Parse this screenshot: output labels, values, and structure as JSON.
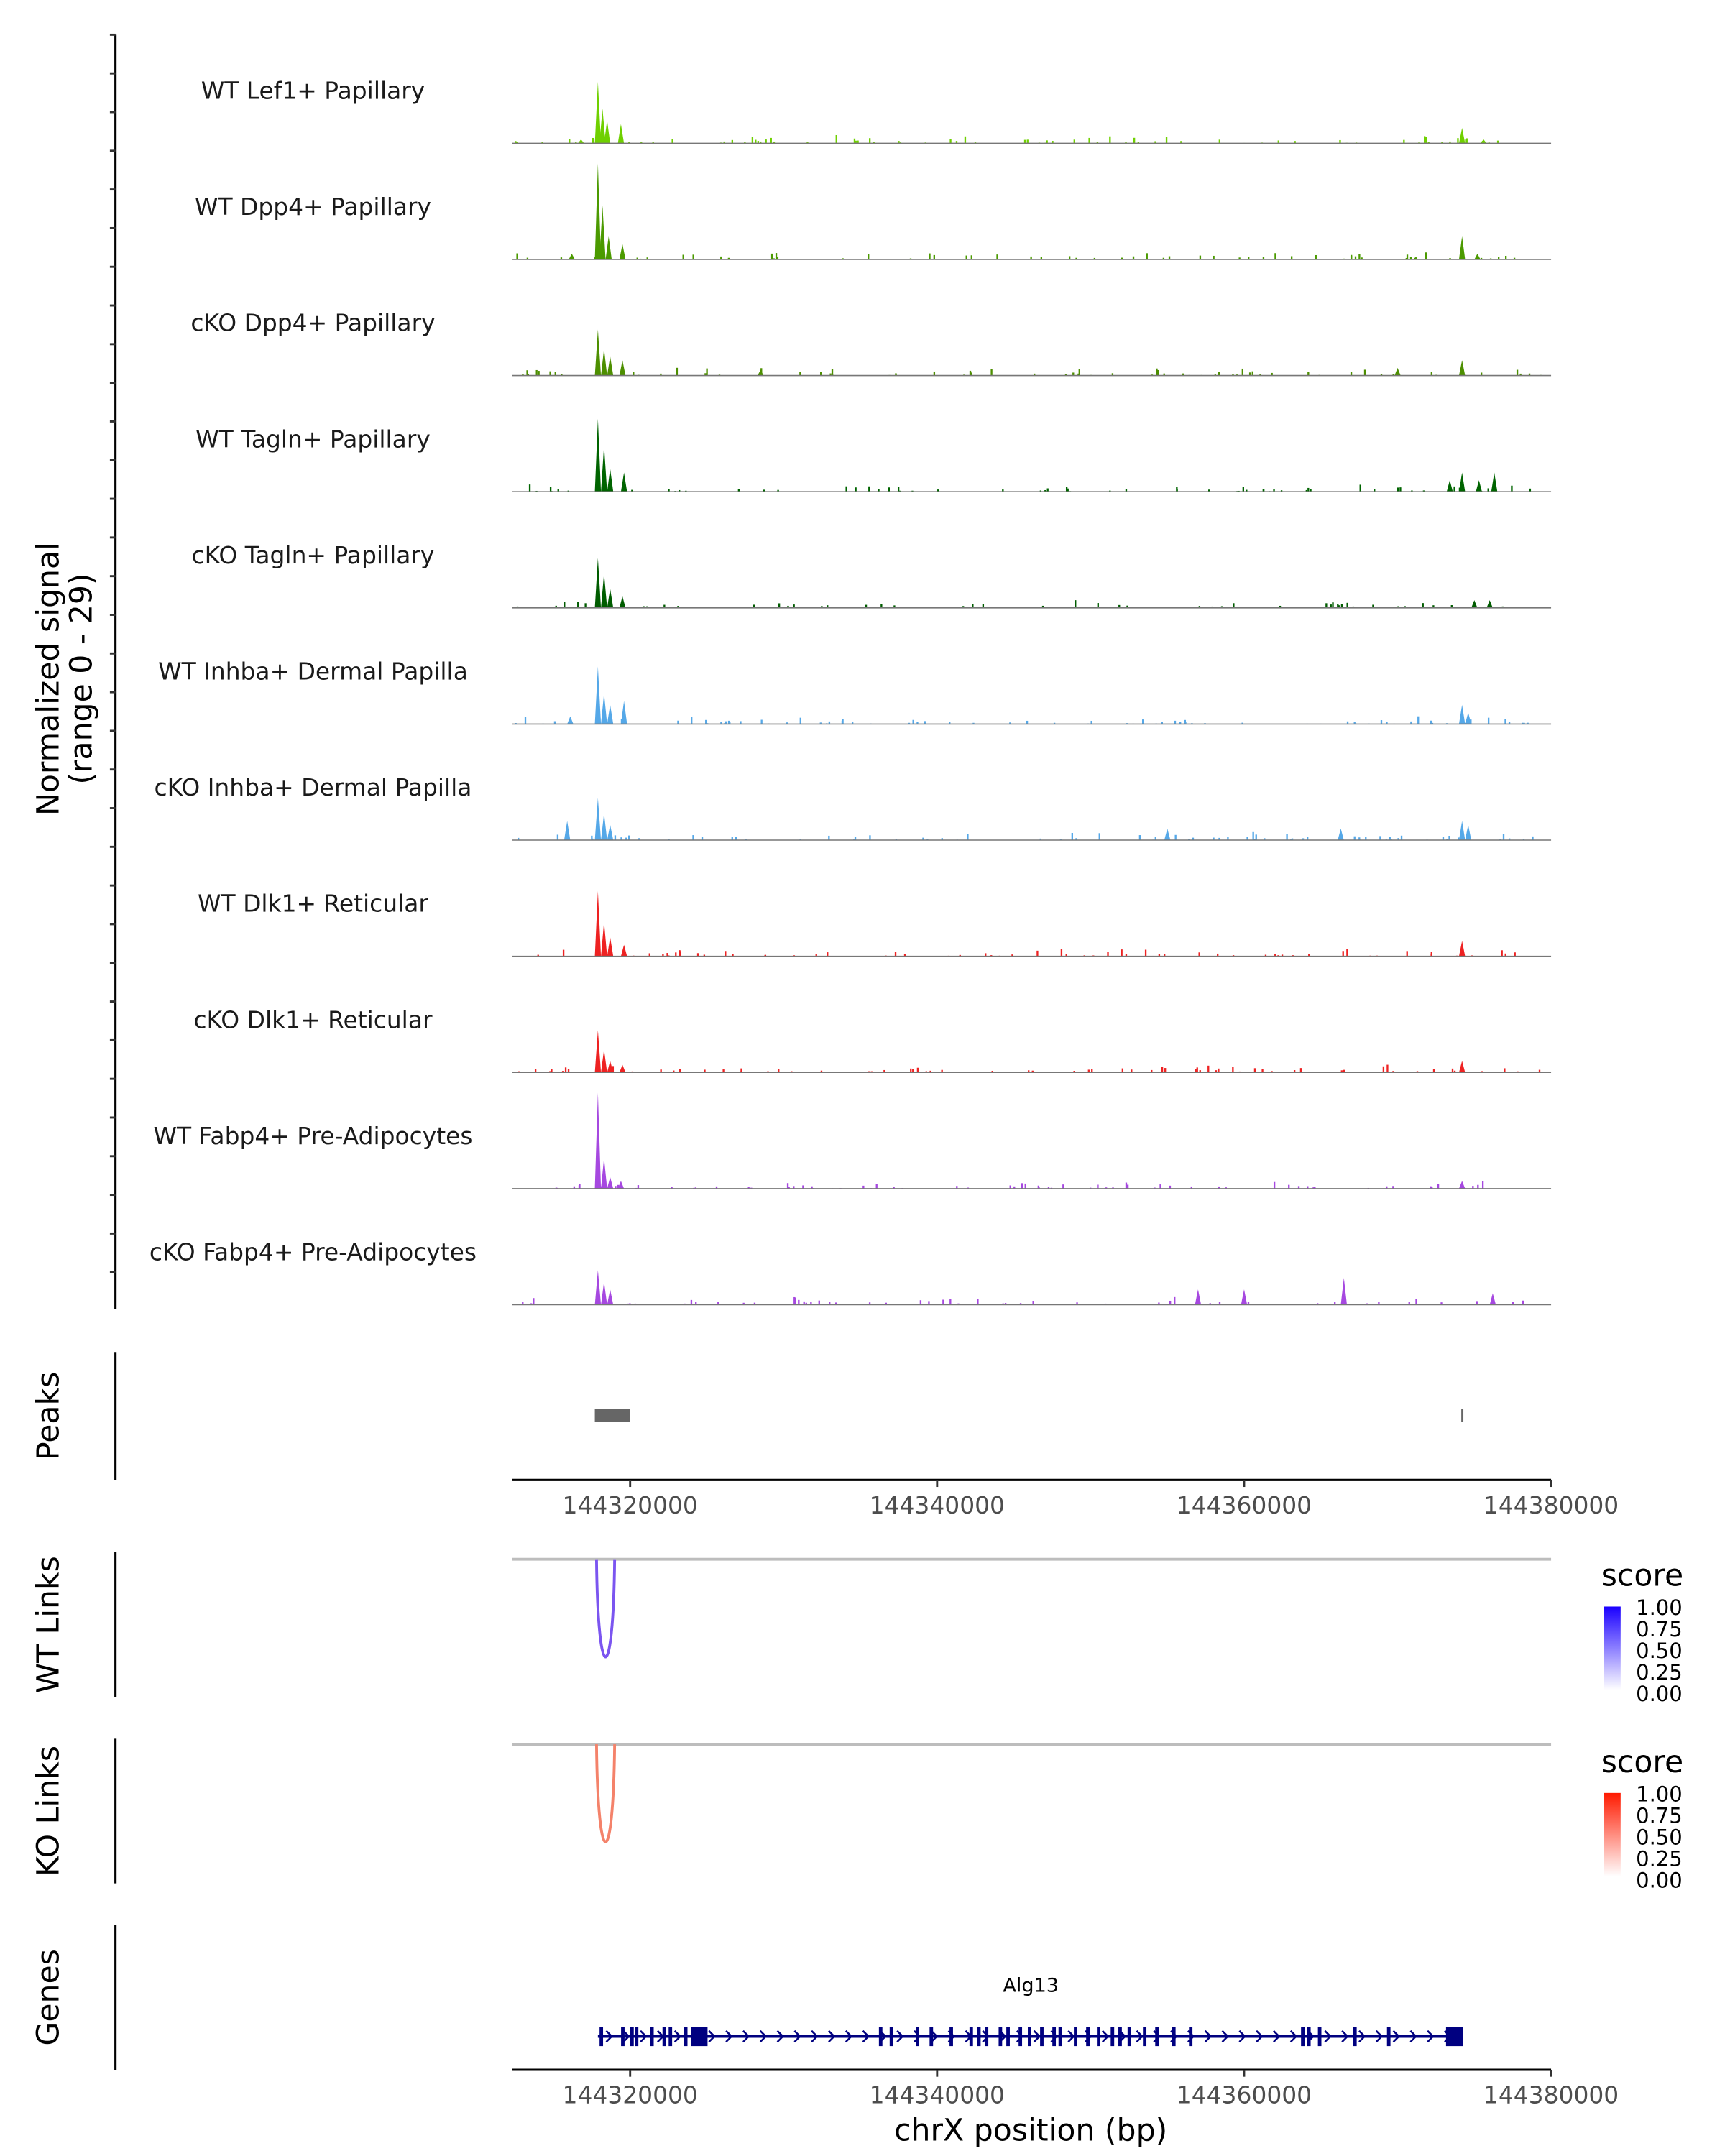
{
  "chart_data": {
    "type": "area",
    "title": "",
    "xlabel": "chrX position (bp)",
    "ylabel": "Normalized signal",
    "ylabel_range": "(range 0 - 29)",
    "ylim": [
      0,
      29
    ],
    "xlim": [
      144312300,
      144380000
    ],
    "x_ticks": [
      "144320000",
      "144340000",
      "144360000",
      "144380000"
    ],
    "x_tick_values": [
      144320000,
      144340000,
      144360000,
      144380000
    ],
    "tracks": [
      {
        "name": "WT Lef1+ Papillary",
        "color": "#6fd000",
        "peaks": [
          [
            144317900,
            16
          ],
          [
            144318200,
            9
          ],
          [
            144318500,
            6
          ],
          [
            144319400,
            5
          ],
          [
            144316800,
            1
          ],
          [
            144374200,
            4
          ],
          [
            144375600,
            1
          ]
        ]
      },
      {
        "name": "WT Dpp4+ Papillary",
        "color": "#4b9a00",
        "peaks": [
          [
            144317900,
            25
          ],
          [
            144318200,
            14
          ],
          [
            144318600,
            6
          ],
          [
            144319500,
            4
          ],
          [
            144316200,
            1.5
          ],
          [
            144374200,
            6
          ],
          [
            144375200,
            1.5
          ]
        ]
      },
      {
        "name": "cKO Dpp4+ Papillary",
        "color": "#4d8f00",
        "peaks": [
          [
            144317900,
            12
          ],
          [
            144318300,
            7
          ],
          [
            144318700,
            5
          ],
          [
            144319500,
            4
          ],
          [
            144374200,
            4
          ],
          [
            144370000,
            2
          ],
          [
            144328500,
            1.5
          ]
        ]
      },
      {
        "name": "WT Tagln+ Papillary",
        "color": "#006400",
        "peaks": [
          [
            144317900,
            19
          ],
          [
            144318300,
            12
          ],
          [
            144318700,
            6
          ],
          [
            144319600,
            5
          ],
          [
            144374200,
            5
          ],
          [
            144373400,
            3
          ],
          [
            144376300,
            5
          ],
          [
            144375300,
            3
          ]
        ]
      },
      {
        "name": "cKO Tagln+ Papillary",
        "color": "#005c00",
        "peaks": [
          [
            144317900,
            13
          ],
          [
            144318300,
            9
          ],
          [
            144318700,
            5
          ],
          [
            144319500,
            3
          ],
          [
            144375000,
            2
          ],
          [
            144376000,
            2
          ]
        ]
      },
      {
        "name": "WT Inhba+ Dermal Papilla",
        "color": "#55a8e8",
        "peaks": [
          [
            144317900,
            15
          ],
          [
            144318300,
            8
          ],
          [
            144318700,
            5
          ],
          [
            144319600,
            6
          ],
          [
            144316100,
            2
          ],
          [
            144374200,
            5
          ],
          [
            144374600,
            3
          ]
        ]
      },
      {
        "name": "cKO Inhba+ Dermal Papilla",
        "color": "#55a8e8",
        "peaks": [
          [
            144317900,
            11
          ],
          [
            144318300,
            7
          ],
          [
            144318700,
            4
          ],
          [
            144315900,
            5
          ],
          [
            144374200,
            5
          ],
          [
            144374600,
            4
          ],
          [
            144355000,
            3
          ],
          [
            144366300,
            3
          ]
        ]
      },
      {
        "name": "WT Dlk1+ Reticular",
        "color": "#ee2222",
        "peaks": [
          [
            144317900,
            17
          ],
          [
            144318300,
            9
          ],
          [
            144318700,
            5
          ],
          [
            144319600,
            3
          ],
          [
            144374200,
            4
          ]
        ]
      },
      {
        "name": "cKO Dlk1+ Reticular",
        "color": "#ee2222",
        "peaks": [
          [
            144317900,
            11
          ],
          [
            144318300,
            6
          ],
          [
            144318700,
            3
          ],
          [
            144319500,
            2
          ],
          [
            144374200,
            3
          ]
        ]
      },
      {
        "name": "WT Fabp4+ Pre-Adipocytes",
        "color": "#a648e0",
        "peaks": [
          [
            144317900,
            25
          ],
          [
            144318300,
            8
          ],
          [
            144318700,
            3
          ],
          [
            144319400,
            2
          ],
          [
            144374200,
            2
          ]
        ]
      },
      {
        "name": "cKO Fabp4+ Pre-Adipocytes",
        "color": "#a648e0",
        "peaks": [
          [
            144317900,
            9
          ],
          [
            144318300,
            6
          ],
          [
            144318700,
            4
          ],
          [
            144366500,
            7
          ],
          [
            144357000,
            4
          ],
          [
            144360000,
            4
          ],
          [
            144376200,
            3
          ]
        ]
      }
    ],
    "peaks_track": {
      "label": "Peaks",
      "color": "#666666",
      "regions": [
        [
          144317700,
          144320000
        ],
        [
          144374150,
          144374250
        ]
      ]
    },
    "wt_links": {
      "label": "WT Links",
      "color": "#7b55f0",
      "start": 144317900,
      "end": 144318900,
      "score": 0.6
    },
    "ko_links": {
      "label": "KO Links",
      "color": "#f4826a",
      "start": 144317900,
      "end": 144318900,
      "score": 0.5
    },
    "legend_wt": {
      "title": "score",
      "low": "#ffffff",
      "high": "#1a00ff",
      "ticks": [
        "1.00",
        "0.75",
        "0.50",
        "0.25",
        "0.00"
      ]
    },
    "legend_ko": {
      "title": "score",
      "low": "#ffffff",
      "high": "#ff1a00",
      "ticks": [
        "1.00",
        "0.75",
        "0.50",
        "0.25",
        "0.00"
      ]
    },
    "genes": {
      "label": "Genes",
      "color": "#000080",
      "gene_name": "Alg13",
      "start": 144317900,
      "end": 144374100,
      "big_exons": [
        144324500,
        144373700
      ],
      "exons": [
        144318100,
        144319500,
        144320100,
        144320400,
        144321400,
        144322200,
        144322600,
        144323600,
        144336300,
        144337000,
        144338700,
        144339600,
        144340900,
        144342200,
        144342700,
        144343200,
        144344100,
        144344600,
        144345400,
        144346000,
        144346800,
        144347600,
        144348000,
        144349000,
        144349800,
        144350500,
        144351400,
        144351900,
        144352500,
        144353500,
        144354300,
        144355400,
        144356500,
        144363800,
        144364200,
        144364900,
        144367200,
        144369400
      ]
    }
  }
}
